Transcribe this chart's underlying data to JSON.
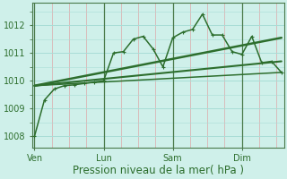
{
  "title": "Pression niveau de la mer( hPa )",
  "bg_color": "#cff0ea",
  "grid_color": "#a8ddd6",
  "line_color": "#2d6e2d",
  "yticks": [
    1008,
    1009,
    1010,
    1011,
    1012
  ],
  "ylim": [
    1007.6,
    1012.8
  ],
  "xtick_labels": [
    "Ven",
    "Lun",
    "Sam",
    "Dim"
  ],
  "xtick_positions": [
    0,
    28,
    56,
    84
  ],
  "xlim": [
    -1,
    101
  ],
  "series_main": {
    "x": [
      0,
      4,
      8,
      12,
      16,
      20,
      24,
      28,
      32,
      36,
      40,
      44,
      48,
      52,
      56,
      60,
      64,
      68,
      72,
      76,
      80,
      84,
      88,
      92,
      96,
      100
    ],
    "y": [
      1008.0,
      1009.3,
      1009.7,
      1009.82,
      1009.85,
      1009.9,
      1009.95,
      1010.0,
      1011.0,
      1011.05,
      1011.5,
      1011.6,
      1011.15,
      1010.5,
      1011.55,
      1011.75,
      1011.85,
      1012.4,
      1011.65,
      1011.65,
      1011.05,
      1010.95,
      1011.6,
      1010.65,
      1010.7,
      1010.3
    ],
    "marker": "P",
    "markersize": 2.8,
    "linewidth": 1.1
  },
  "trend1": {
    "x": [
      0,
      100
    ],
    "y": [
      1009.82,
      1011.55
    ],
    "linewidth": 1.8
  },
  "trend2": {
    "x": [
      0,
      100
    ],
    "y": [
      1009.82,
      1010.7
    ],
    "linewidth": 1.5
  },
  "trend3": {
    "x": [
      0,
      100
    ],
    "y": [
      1009.82,
      1010.3
    ],
    "linewidth": 1.1
  },
  "vline_positions": [
    0,
    28,
    56,
    84
  ],
  "minor_tick_positions": [
    7,
    14,
    21,
    35,
    42,
    49,
    63,
    70,
    77,
    91,
    98
  ],
  "vline_color": "#4a7a4a",
  "font_color": "#2d6e2d",
  "xlabel_fontsize": 8.5,
  "tick_fontsize": 7
}
